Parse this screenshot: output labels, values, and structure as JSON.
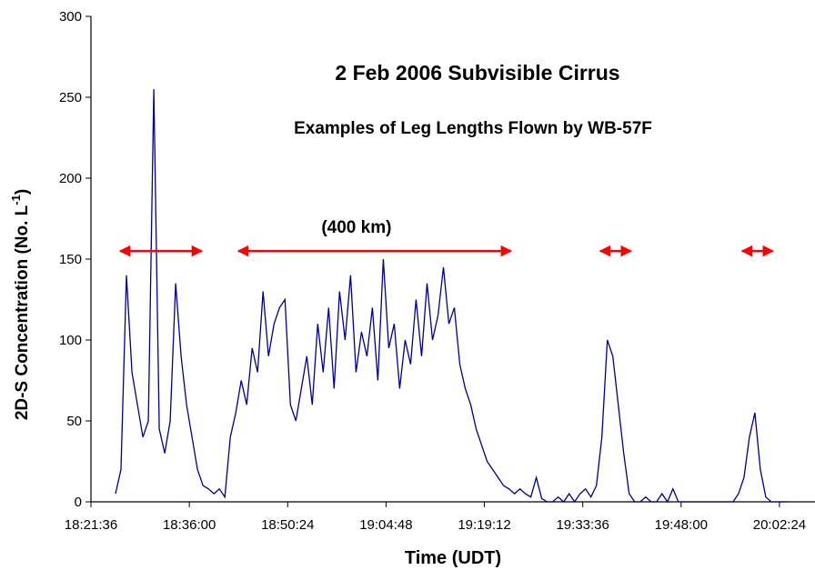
{
  "chart_data": {
    "type": "line",
    "title": "2 Feb 2006 Subvisible Cirrus",
    "subtitle": "Examples of Leg Lengths Flown by WB-57F",
    "x_label": "Time (UDT)",
    "y_label": "2D-S Concentration (No. L",
    "y_label_sup": "-1",
    "y_label_end": ")",
    "xlim": [
      "18:21:36",
      "20:07:36"
    ],
    "xticks": [
      "18:21:36",
      "18:36:00",
      "18:50:24",
      "19:04:48",
      "19:19:12",
      "19:33:36",
      "19:48:00",
      "20:02:24"
    ],
    "ylim": [
      0,
      300
    ],
    "yticks": [
      0,
      50,
      100,
      150,
      200,
      250,
      300
    ],
    "grid": false,
    "x": [
      "18:25:12",
      "18:26:00",
      "18:26:48",
      "18:27:36",
      "18:28:24",
      "18:29:12",
      "18:30:00",
      "18:30:48",
      "18:31:36",
      "18:32:24",
      "18:33:12",
      "18:34:00",
      "18:34:48",
      "18:35:36",
      "18:36:24",
      "18:37:12",
      "18:38:00",
      "18:38:48",
      "18:39:36",
      "18:40:24",
      "18:41:12",
      "18:42:00",
      "18:42:48",
      "18:43:36",
      "18:44:24",
      "18:45:12",
      "18:46:00",
      "18:46:48",
      "18:47:36",
      "18:48:24",
      "18:49:12",
      "18:50:00",
      "18:50:48",
      "18:51:36",
      "18:52:24",
      "18:53:12",
      "18:54:00",
      "18:54:48",
      "18:55:36",
      "18:56:24",
      "18:57:12",
      "18:58:00",
      "18:58:48",
      "18:59:36",
      "19:00:24",
      "19:01:12",
      "19:02:00",
      "19:02:48",
      "19:03:36",
      "19:04:24",
      "19:05:12",
      "19:06:00",
      "19:06:48",
      "19:07:36",
      "19:08:24",
      "19:09:12",
      "19:10:00",
      "19:10:48",
      "19:11:36",
      "19:12:24",
      "19:13:12",
      "19:14:00",
      "19:14:48",
      "19:15:36",
      "19:16:24",
      "19:17:12",
      "19:18:00",
      "19:18:48",
      "19:19:36",
      "19:20:24",
      "19:21:12",
      "19:22:00",
      "19:22:48",
      "19:23:36",
      "19:24:24",
      "19:25:12",
      "19:26:00",
      "19:26:48",
      "19:27:36",
      "19:28:24",
      "19:29:12",
      "19:30:00",
      "19:30:48",
      "19:31:36",
      "19:32:24",
      "19:33:12",
      "19:34:00",
      "19:34:48",
      "19:35:36",
      "19:36:24",
      "19:37:12",
      "19:38:00",
      "19:38:48",
      "19:39:36",
      "19:40:24",
      "19:41:12",
      "19:42:00",
      "19:42:48",
      "19:43:36",
      "19:44:24",
      "19:45:12",
      "19:46:00",
      "19:46:48",
      "19:47:36",
      "19:48:24",
      "19:49:12",
      "19:50:00",
      "19:50:48",
      "19:51:36",
      "19:52:24",
      "19:53:12",
      "19:54:00",
      "19:54:48",
      "19:55:36",
      "19:56:24",
      "19:57:12",
      "19:58:00",
      "19:58:48",
      "19:59:36",
      "20:00:24",
      "20:01:12",
      "20:02:00",
      "20:02:48",
      "20:03:36"
    ],
    "series": [
      {
        "name": "2D-S Concentration",
        "color": "#00008b",
        "values": [
          5,
          20,
          140,
          80,
          60,
          40,
          50,
          255,
          45,
          30,
          50,
          135,
          90,
          60,
          40,
          20,
          10,
          8,
          5,
          8,
          3,
          40,
          55,
          75,
          60,
          95,
          80,
          130,
          90,
          110,
          120,
          125,
          60,
          50,
          70,
          90,
          60,
          110,
          80,
          120,
          70,
          130,
          100,
          140,
          80,
          105,
          90,
          120,
          75,
          150,
          95,
          110,
          70,
          100,
          85,
          125,
          90,
          135,
          100,
          115,
          145,
          110,
          120,
          85,
          70,
          60,
          45,
          35,
          25,
          20,
          15,
          10,
          8,
          5,
          8,
          5,
          3,
          15,
          2,
          0,
          0,
          3,
          0,
          5,
          0,
          5,
          8,
          3,
          10,
          40,
          100,
          90,
          60,
          30,
          5,
          0,
          0,
          3,
          0,
          0,
          5,
          0,
          8,
          0,
          0,
          0,
          0,
          0,
          0,
          0,
          0,
          0,
          0,
          0,
          5,
          15,
          40,
          55,
          20,
          3,
          0,
          0,
          0,
          0
        ]
      }
    ],
    "annotations": [
      {
        "start": "18:25:52",
        "end": "18:37:50",
        "y": 155,
        "color": "#ff0000"
      },
      {
        "start": "18:43:10",
        "end": "19:23:06",
        "y": 155,
        "color": "#ff0000",
        "label": "(400 km)"
      },
      {
        "start": "19:36:09",
        "end": "19:40:40",
        "y": 155,
        "color": "#ff0000"
      },
      {
        "start": "19:56:55",
        "end": "20:01:26",
        "y": 155,
        "color": "#ff0000"
      }
    ]
  }
}
